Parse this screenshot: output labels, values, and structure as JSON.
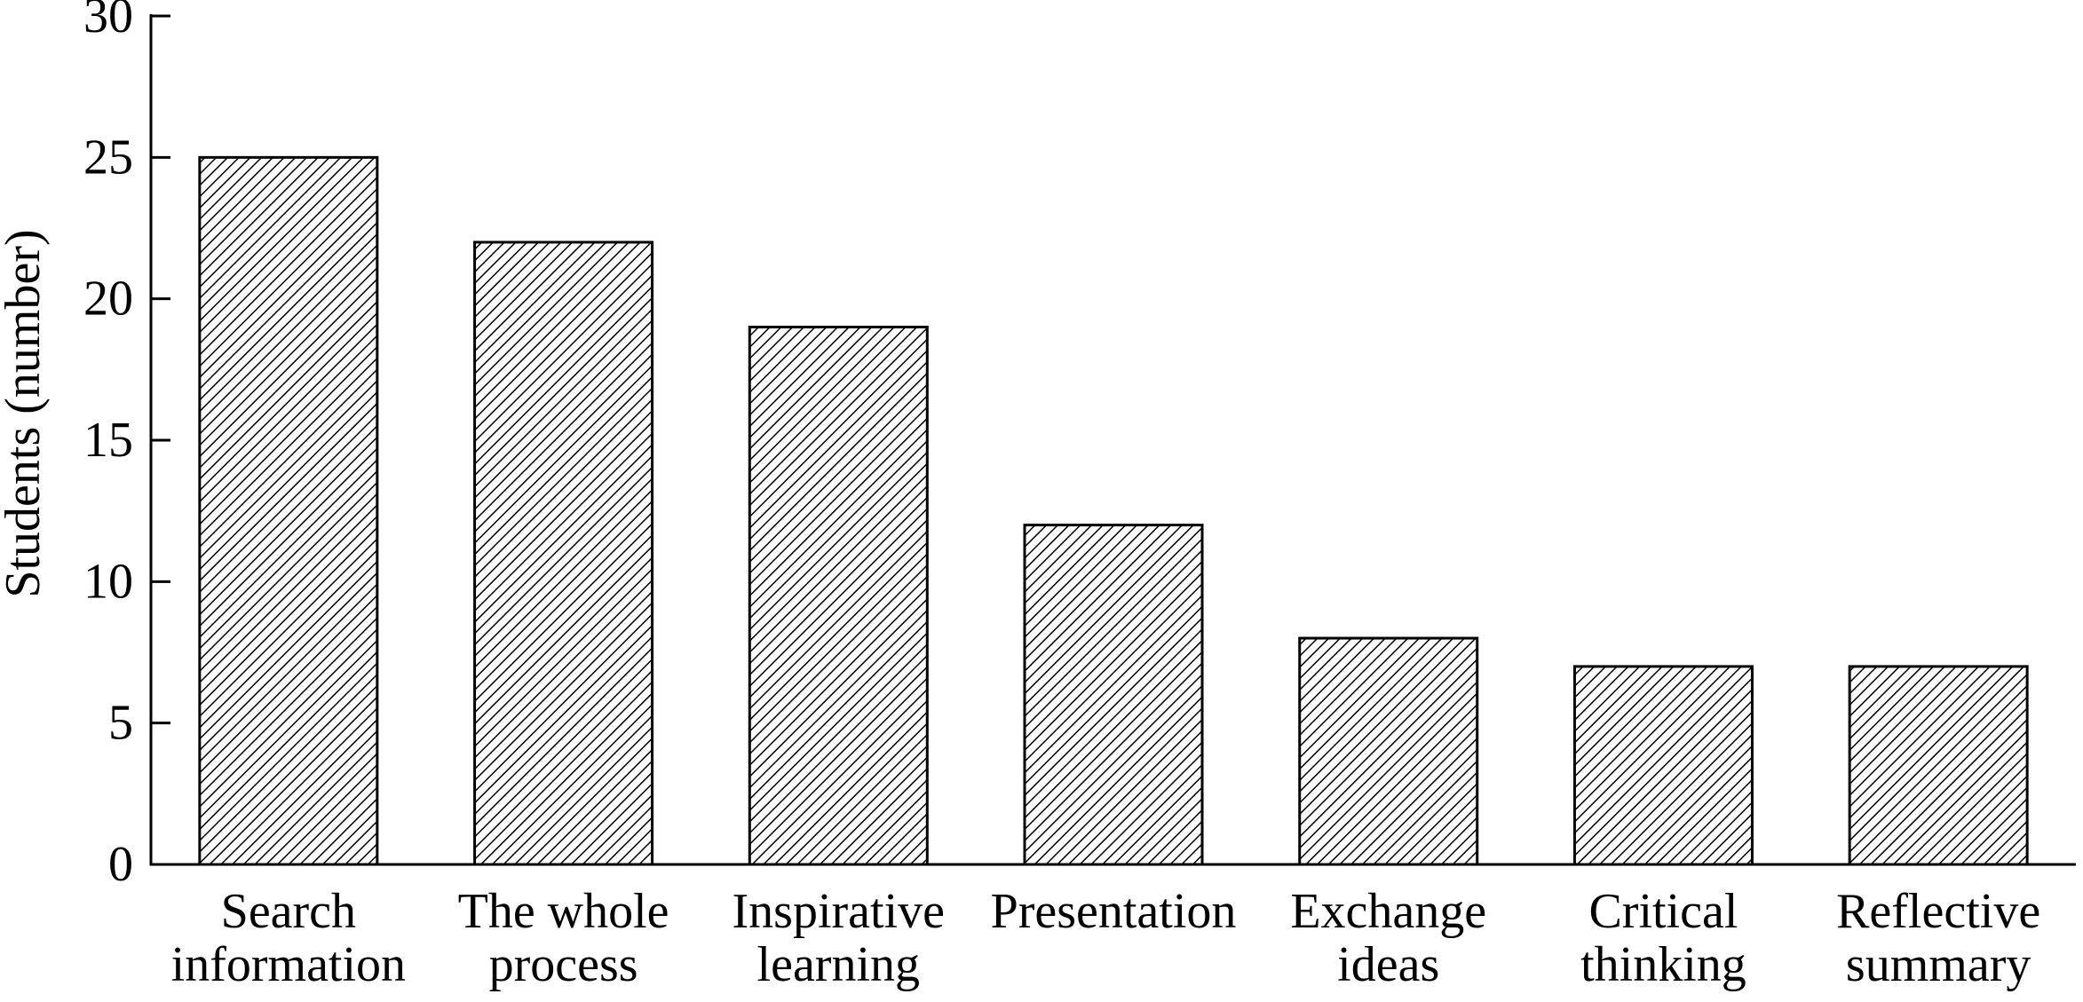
{
  "chart_data": {
    "type": "bar",
    "title": "",
    "xlabel": "",
    "ylabel": "Students (number)",
    "ylim": [
      0,
      30
    ],
    "yticks": [
      0,
      5,
      10,
      15,
      20,
      25,
      30
    ],
    "grid": false,
    "categories": [
      [
        "Search",
        "information"
      ],
      [
        "The whole",
        "process"
      ],
      [
        "Inspirative",
        "learning"
      ],
      [
        "Presentation"
      ],
      [
        "Exchange",
        "ideas"
      ],
      [
        "Critical",
        "thinking"
      ],
      [
        "Reflective",
        "summary"
      ]
    ],
    "values": [
      25,
      22,
      19,
      12,
      8,
      7,
      7
    ],
    "colors": {
      "bar_stroke": "#000000",
      "hatch": "#000000",
      "bar_fill": "#ffffff"
    }
  }
}
